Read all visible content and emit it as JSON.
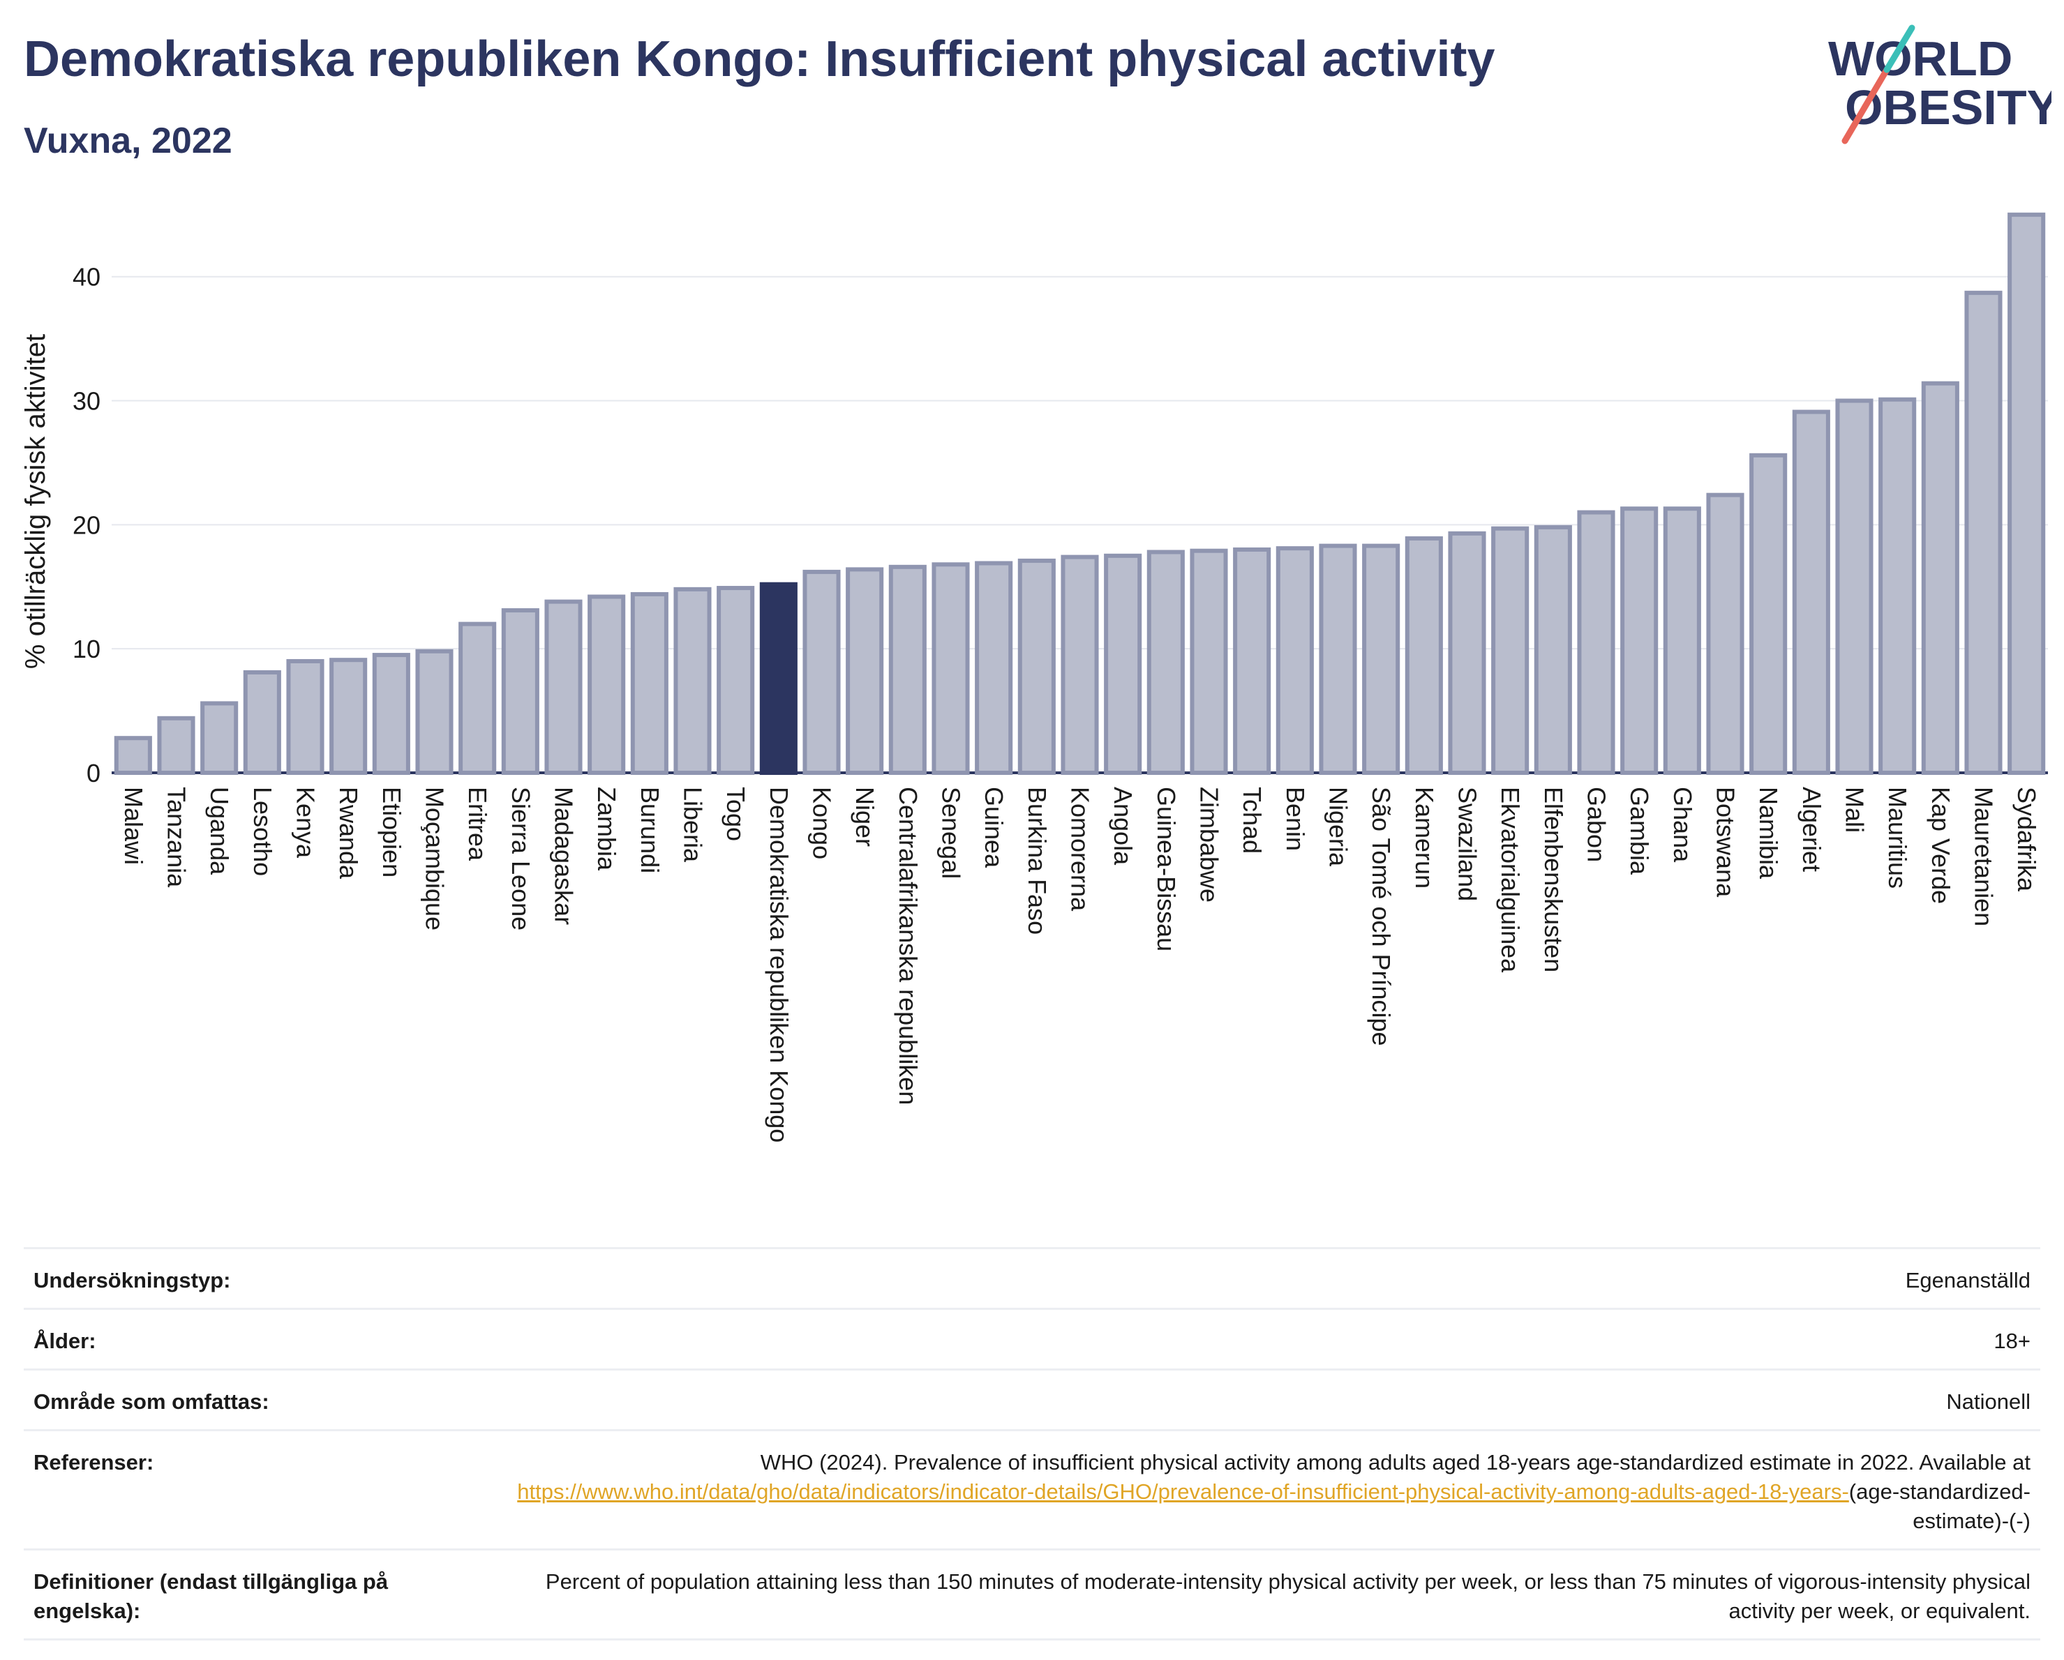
{
  "header": {
    "title": "Demokratiska republiken Kongo: Insufficient physical activity",
    "subtitle": "Vuxna, 2022"
  },
  "logo": {
    "line1": "WORLD",
    "line2": "OBESITY"
  },
  "colors": {
    "bar": "#b9bdcd",
    "bar_stroke": "#8f95b0",
    "highlight": "#2c3560",
    "title": "#2c3560",
    "link": "#e0a526"
  },
  "chart_data": {
    "type": "bar",
    "ylabel": "% otillräcklig fysisk aktivitet",
    "ylim": [
      0,
      46
    ],
    "yticks": [
      0,
      10,
      20,
      30,
      40
    ],
    "grid": true,
    "highlight_category": "Demokratiska republiken Kongo",
    "categories": [
      "Malawi",
      "Tanzania",
      "Uganda",
      "Lesotho",
      "Kenya",
      "Rwanda",
      "Etiopien",
      "Moçambique",
      "Eritrea",
      "Sierra Leone",
      "Madagaskar",
      "Zambia",
      "Burundi",
      "Liberia",
      "Togo",
      "Demokratiska republiken Kongo",
      "Kongo",
      "Niger",
      "Centralafrikanska republiken",
      "Senegal",
      "Guinea",
      "Burkina Faso",
      "Komorerna",
      "Angola",
      "Guinea-Bissau",
      "Zimbabwe",
      "Tchad",
      "Benin",
      "Nigeria",
      "São Tomé och Príncipe",
      "Kamerun",
      "Swaziland",
      "Ekvatorialguinea",
      "Elfenbenskusten",
      "Gabon",
      "Gambia",
      "Ghana",
      "Botswana",
      "Namibia",
      "Algeriet",
      "Mali",
      "Mauritius",
      "Kap Verde",
      "Mauretanien",
      "Sydafrika"
    ],
    "values": [
      2.8,
      4.4,
      5.6,
      8.1,
      9.0,
      9.1,
      9.5,
      9.8,
      12.0,
      13.1,
      13.8,
      14.2,
      14.4,
      14.8,
      14.9,
      15.2,
      16.2,
      16.4,
      16.6,
      16.8,
      16.9,
      17.1,
      17.4,
      17.5,
      17.8,
      17.9,
      18.0,
      18.1,
      18.3,
      18.3,
      18.9,
      19.3,
      19.7,
      19.8,
      21.0,
      21.3,
      21.3,
      22.4,
      25.6,
      29.1,
      30.0,
      30.1,
      31.4,
      38.7,
      45.0
    ]
  },
  "meta": [
    {
      "key": "Undersökningstyp:",
      "value": "Egenanställd"
    },
    {
      "key": "Ålder:",
      "value": "18+"
    },
    {
      "key": "Område som omfattas:",
      "value": "Nationell"
    }
  ],
  "references": {
    "key": "Referenser:",
    "text": "WHO (2024). Prevalence of insufficient physical activity among adults aged 18-years age-standardized estimate in 2022. Available at",
    "link": "https://www.who.int/data/gho/data/indicators/indicator-details/GHO/prevalence-of-insufficient-physical-activity-among-adults-aged-18-years-",
    "suffix": "(age-standardized-estimate)-(-)"
  },
  "definitions": {
    "key": "Definitioner (endast tillgängliga på engelska):",
    "value": "Percent of population attaining less than 150 minutes of moderate-intensity physical activity per week, or less than 75 minutes of vigorous-intensity physical activity per week, or equivalent."
  }
}
